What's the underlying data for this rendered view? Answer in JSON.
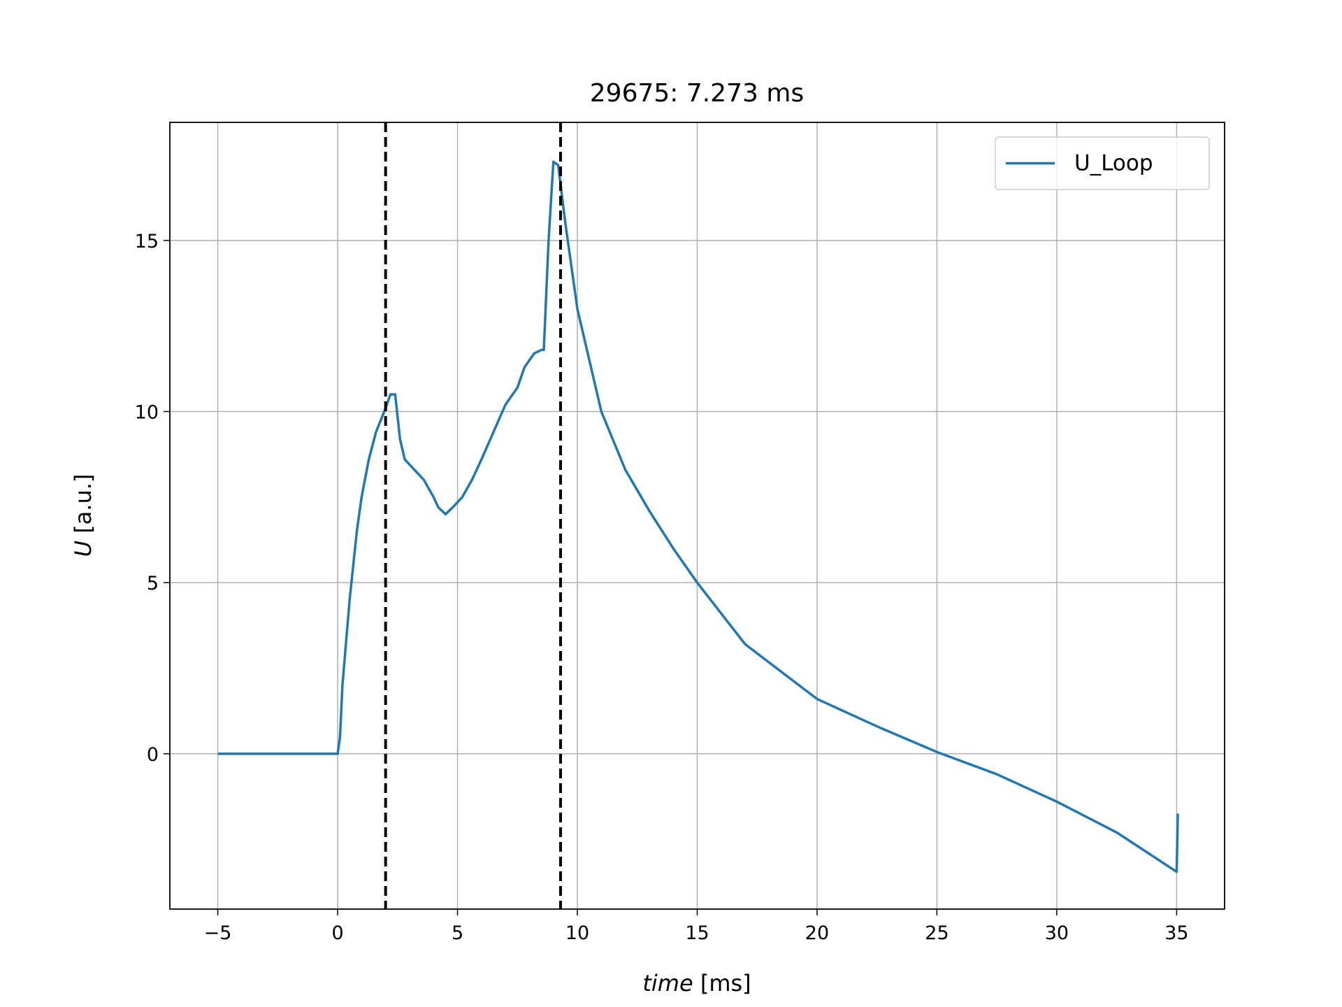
{
  "chart_data": {
    "type": "line",
    "title": "29675: 7.273 ms",
    "xlabel": {
      "var": "time",
      "unit": "[ms]"
    },
    "ylabel": {
      "var": "U",
      "unit": "[a.u.]"
    },
    "x": [
      -5,
      -2.5,
      0,
      0.1,
      0.2,
      0.5,
      0.8,
      1.0,
      1.3,
      1.6,
      2.0,
      2.2,
      2.4,
      2.6,
      2.8,
      3.2,
      3.6,
      4.0,
      4.2,
      4.5,
      4.8,
      5.2,
      5.6,
      6.0,
      6.5,
      7.0,
      7.5,
      7.8,
      8.2,
      8.5,
      8.6,
      8.8,
      9.0,
      9.2,
      9.5,
      10.0,
      11,
      12,
      13,
      14,
      15,
      17,
      20,
      22.5,
      25,
      27.5,
      30,
      32.5,
      35,
      35.05
    ],
    "series": [
      {
        "name": "U_Loop",
        "color": "#1f77b4",
        "values": [
          0,
          0,
          0,
          0.5,
          2,
          4.5,
          6.5,
          7.5,
          8.6,
          9.4,
          10.1,
          10.5,
          10.5,
          9.2,
          8.6,
          8.3,
          8.0,
          7.5,
          7.2,
          7.0,
          7.2,
          7.5,
          8.0,
          8.6,
          9.4,
          10.2,
          10.7,
          11.3,
          11.7,
          11.8,
          11.8,
          15,
          17.3,
          17.2,
          15.5,
          13.0,
          10.0,
          8.3,
          7.1,
          6.0,
          5.0,
          3.2,
          1.6,
          0.8,
          0.05,
          -0.6,
          -1.4,
          -2.3,
          -3.45,
          -1.75
        ]
      }
    ],
    "vlines": [
      2.0,
      9.3
    ],
    "xlim": [
      -7,
      37
    ],
    "ylim": [
      -4.54,
      18.45
    ],
    "xticks": [
      {
        "value": -5,
        "label": "−5"
      },
      0,
      5,
      10,
      15,
      20,
      25,
      30,
      35
    ],
    "yticks": [
      0,
      5,
      10,
      15
    ],
    "grid": true,
    "legend": "upper right"
  }
}
